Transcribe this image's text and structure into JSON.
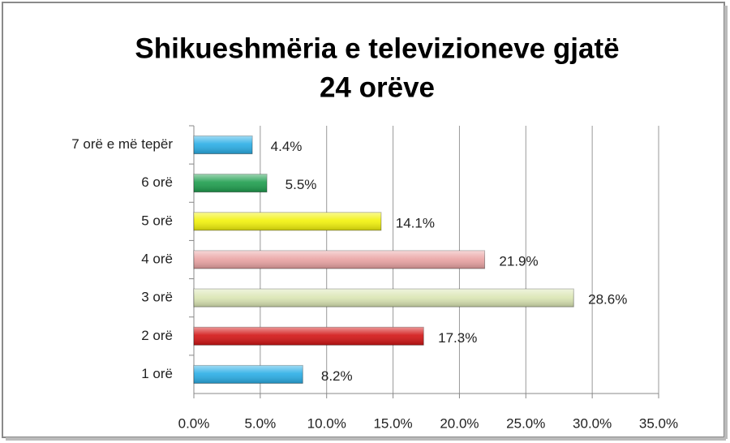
{
  "chart_data": {
    "type": "bar",
    "orientation": "horizontal",
    "title": [
      "Shikueshmëria e televizioneve gjatë",
      "24 orëve"
    ],
    "categories": [
      "7 orë e më tepër",
      "6 orë",
      "5 orë",
      "4 orë",
      "3 orë",
      "2 orë",
      "1 orë"
    ],
    "values": [
      4.4,
      5.5,
      14.1,
      21.9,
      28.6,
      17.3,
      8.2
    ],
    "value_labels": [
      "4.4%",
      "5.5%",
      "14.1%",
      "21.9%",
      "28.6%",
      "17.3%",
      "8.2%"
    ],
    "colors": [
      "#2aaee6",
      "#1e9e4e",
      "#f2f20a",
      "#eaa4a4",
      "#dbe6b4",
      "#d21414",
      "#2aaee6"
    ],
    "xlim": [
      0,
      35
    ],
    "xticks": [
      {
        "value": 0,
        "label": "0.0%"
      },
      {
        "value": 5,
        "label": "5.0%"
      },
      {
        "value": 10,
        "label": "10.0%"
      },
      {
        "value": 15,
        "label": "15.0%"
      },
      {
        "value": 20,
        "label": "20.0%"
      },
      {
        "value": 25,
        "label": "25.0%"
      },
      {
        "value": 30,
        "label": "30.0%"
      },
      {
        "value": 35,
        "label": "35.0%"
      }
    ],
    "grid": true
  }
}
